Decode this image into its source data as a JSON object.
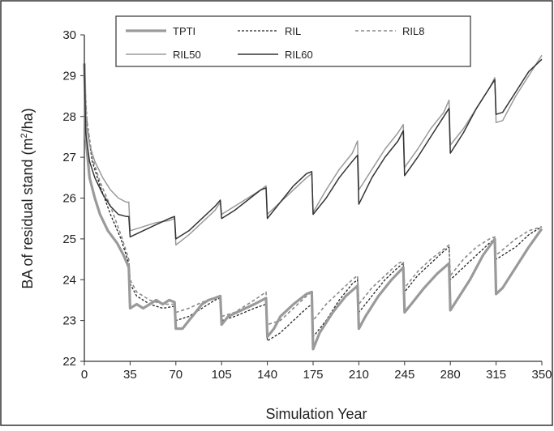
{
  "chart_data": {
    "type": "line",
    "xlabel": "Simulation Year",
    "ylabel_parts": [
      "BA of residual stand (m",
      "2",
      "/ha)"
    ],
    "xlim": [
      0,
      350
    ],
    "ylim": [
      22,
      30
    ],
    "x_ticks": [
      0,
      35,
      70,
      105,
      140,
      175,
      210,
      245,
      280,
      315,
      350
    ],
    "y_ticks": [
      22,
      23,
      24,
      25,
      26,
      27,
      28,
      29,
      30
    ],
    "legend_position": "top",
    "grid": false,
    "series": [
      {
        "name": "TPTI",
        "color": "#9a9a9a",
        "dash": "",
        "width": 3.2,
        "points": [
          [
            0,
            29.3
          ],
          [
            1,
            27.5
          ],
          [
            4,
            26.5
          ],
          [
            8,
            26.0
          ],
          [
            12,
            25.6
          ],
          [
            18,
            25.2
          ],
          [
            25,
            24.9
          ],
          [
            30,
            24.6
          ],
          [
            34,
            24.3
          ],
          [
            35,
            23.3
          ],
          [
            40,
            23.4
          ],
          [
            45,
            23.3
          ],
          [
            50,
            23.4
          ],
          [
            55,
            23.5
          ],
          [
            60,
            23.4
          ],
          [
            65,
            23.5
          ],
          [
            69,
            23.45
          ],
          [
            70,
            22.8
          ],
          [
            75,
            22.8
          ],
          [
            80,
            23.0
          ],
          [
            85,
            23.2
          ],
          [
            90,
            23.4
          ],
          [
            95,
            23.5
          ],
          [
            100,
            23.55
          ],
          [
            104,
            23.6
          ],
          [
            105,
            22.9
          ],
          [
            110,
            23.1
          ],
          [
            120,
            23.25
          ],
          [
            130,
            23.4
          ],
          [
            139,
            23.55
          ],
          [
            140,
            22.6
          ],
          [
            145,
            22.8
          ],
          [
            150,
            23.1
          ],
          [
            160,
            23.4
          ],
          [
            170,
            23.65
          ],
          [
            174,
            23.7
          ],
          [
            175,
            22.3
          ],
          [
            180,
            22.7
          ],
          [
            190,
            23.2
          ],
          [
            200,
            23.6
          ],
          [
            209,
            23.85
          ],
          [
            210,
            22.8
          ],
          [
            215,
            23.1
          ],
          [
            225,
            23.6
          ],
          [
            235,
            24.0
          ],
          [
            244,
            24.3
          ],
          [
            245,
            23.2
          ],
          [
            250,
            23.4
          ],
          [
            260,
            23.8
          ],
          [
            270,
            24.15
          ],
          [
            279,
            24.4
          ],
          [
            280,
            23.25
          ],
          [
            285,
            23.5
          ],
          [
            295,
            24.0
          ],
          [
            305,
            24.6
          ],
          [
            314,
            25.0
          ],
          [
            315,
            23.65
          ],
          [
            320,
            23.8
          ],
          [
            330,
            24.3
          ],
          [
            340,
            24.8
          ],
          [
            350,
            25.25
          ]
        ]
      },
      {
        "name": "RIL",
        "color": "#222222",
        "dash": "3,2",
        "width": 1.3,
        "points": [
          [
            0,
            29.0
          ],
          [
            2,
            27.8
          ],
          [
            6,
            26.9
          ],
          [
            12,
            26.3
          ],
          [
            20,
            25.6
          ],
          [
            28,
            25.0
          ],
          [
            34,
            24.4
          ],
          [
            35,
            23.9
          ],
          [
            40,
            23.6
          ],
          [
            50,
            23.4
          ],
          [
            60,
            23.3
          ],
          [
            69,
            23.35
          ],
          [
            70,
            23.0
          ],
          [
            80,
            23.1
          ],
          [
            90,
            23.3
          ],
          [
            100,
            23.5
          ],
          [
            104,
            23.55
          ],
          [
            105,
            23.0
          ],
          [
            115,
            23.1
          ],
          [
            130,
            23.3
          ],
          [
            139,
            23.4
          ],
          [
            140,
            22.5
          ],
          [
            150,
            22.7
          ],
          [
            160,
            23.0
          ],
          [
            170,
            23.3
          ],
          [
            174,
            23.4
          ],
          [
            175,
            22.6
          ],
          [
            185,
            23.0
          ],
          [
            195,
            23.5
          ],
          [
            205,
            23.9
          ],
          [
            209,
            24.0
          ],
          [
            210,
            23.2
          ],
          [
            220,
            23.6
          ],
          [
            230,
            24.0
          ],
          [
            240,
            24.3
          ],
          [
            244,
            24.4
          ],
          [
            245,
            23.7
          ],
          [
            255,
            24.1
          ],
          [
            265,
            24.4
          ],
          [
            275,
            24.7
          ],
          [
            279,
            24.8
          ],
          [
            280,
            24.0
          ],
          [
            290,
            24.3
          ],
          [
            300,
            24.6
          ],
          [
            310,
            24.9
          ],
          [
            314,
            25.0
          ],
          [
            315,
            24.5
          ],
          [
            330,
            24.8
          ],
          [
            340,
            25.1
          ],
          [
            350,
            25.3
          ]
        ]
      },
      {
        "name": "RIL8",
        "color": "#888888",
        "dash": "4,3",
        "width": 1.6,
        "points": [
          [
            0,
            29.1
          ],
          [
            2,
            27.9
          ],
          [
            6,
            27.0
          ],
          [
            12,
            26.4
          ],
          [
            20,
            25.8
          ],
          [
            28,
            25.1
          ],
          [
            34,
            24.5
          ],
          [
            35,
            24.0
          ],
          [
            40,
            23.7
          ],
          [
            50,
            23.5
          ],
          [
            60,
            23.4
          ],
          [
            69,
            23.4
          ],
          [
            70,
            23.2
          ],
          [
            80,
            23.3
          ],
          [
            90,
            23.45
          ],
          [
            100,
            23.55
          ],
          [
            104,
            23.6
          ],
          [
            105,
            23.1
          ],
          [
            115,
            23.2
          ],
          [
            130,
            23.5
          ],
          [
            139,
            23.7
          ],
          [
            140,
            22.9
          ],
          [
            150,
            23.0
          ],
          [
            160,
            23.3
          ],
          [
            170,
            23.6
          ],
          [
            174,
            23.7
          ],
          [
            175,
            23.0
          ],
          [
            185,
            23.4
          ],
          [
            195,
            23.7
          ],
          [
            205,
            24.0
          ],
          [
            209,
            24.1
          ],
          [
            210,
            23.4
          ],
          [
            220,
            23.8
          ],
          [
            230,
            24.1
          ],
          [
            240,
            24.4
          ],
          [
            244,
            24.45
          ],
          [
            245,
            23.8
          ],
          [
            255,
            24.2
          ],
          [
            265,
            24.5
          ],
          [
            275,
            24.75
          ],
          [
            279,
            24.85
          ],
          [
            280,
            24.1
          ],
          [
            290,
            24.5
          ],
          [
            300,
            24.8
          ],
          [
            310,
            25.0
          ],
          [
            314,
            25.05
          ],
          [
            315,
            24.6
          ],
          [
            330,
            25.0
          ],
          [
            340,
            25.2
          ],
          [
            350,
            25.3
          ]
        ]
      },
      {
        "name": "RIL50",
        "color": "#9a9a9a",
        "dash": "",
        "width": 1.5,
        "points": [
          [
            0,
            29.2
          ],
          [
            1,
            27.9
          ],
          [
            4,
            27.3
          ],
          [
            8,
            26.9
          ],
          [
            14,
            26.5
          ],
          [
            20,
            26.2
          ],
          [
            26,
            26.0
          ],
          [
            32,
            25.9
          ],
          [
            34,
            25.9
          ],
          [
            35,
            25.2
          ],
          [
            45,
            25.3
          ],
          [
            55,
            25.4
          ],
          [
            65,
            25.45
          ],
          [
            69,
            25.5
          ],
          [
            70,
            24.85
          ],
          [
            80,
            25.1
          ],
          [
            90,
            25.4
          ],
          [
            100,
            25.7
          ],
          [
            104,
            25.9
          ],
          [
            105,
            25.6
          ],
          [
            115,
            25.8
          ],
          [
            125,
            26.0
          ],
          [
            135,
            26.2
          ],
          [
            139,
            26.3
          ],
          [
            140,
            25.6
          ],
          [
            150,
            25.9
          ],
          [
            160,
            26.2
          ],
          [
            170,
            26.5
          ],
          [
            174,
            26.6
          ],
          [
            175,
            25.65
          ],
          [
            185,
            26.2
          ],
          [
            195,
            26.7
          ],
          [
            205,
            27.1
          ],
          [
            209,
            27.4
          ],
          [
            210,
            26.2
          ],
          [
            220,
            26.7
          ],
          [
            230,
            27.2
          ],
          [
            240,
            27.6
          ],
          [
            244,
            27.8
          ],
          [
            245,
            26.75
          ],
          [
            255,
            27.2
          ],
          [
            265,
            27.7
          ],
          [
            275,
            28.1
          ],
          [
            279,
            28.4
          ],
          [
            280,
            27.3
          ],
          [
            290,
            27.7
          ],
          [
            300,
            28.2
          ],
          [
            310,
            28.7
          ],
          [
            314,
            28.95
          ],
          [
            315,
            27.85
          ],
          [
            320,
            27.9
          ],
          [
            330,
            28.5
          ],
          [
            340,
            29.0
          ],
          [
            350,
            29.5
          ]
        ]
      },
      {
        "name": "RIL60",
        "color": "#333333",
        "dash": "",
        "width": 1.5,
        "points": [
          [
            0,
            29.3
          ],
          [
            1,
            27.6
          ],
          [
            4,
            26.9
          ],
          [
            8,
            26.5
          ],
          [
            14,
            26.1
          ],
          [
            20,
            25.8
          ],
          [
            26,
            25.6
          ],
          [
            32,
            25.55
          ],
          [
            34,
            25.55
          ],
          [
            35,
            25.05
          ],
          [
            45,
            25.2
          ],
          [
            55,
            25.35
          ],
          [
            65,
            25.5
          ],
          [
            69,
            25.55
          ],
          [
            70,
            25.0
          ],
          [
            80,
            25.2
          ],
          [
            90,
            25.5
          ],
          [
            100,
            25.8
          ],
          [
            104,
            25.95
          ],
          [
            105,
            25.5
          ],
          [
            115,
            25.7
          ],
          [
            125,
            25.95
          ],
          [
            135,
            26.2
          ],
          [
            139,
            26.25
          ],
          [
            140,
            25.5
          ],
          [
            150,
            25.9
          ],
          [
            160,
            26.3
          ],
          [
            170,
            26.6
          ],
          [
            174,
            26.65
          ],
          [
            175,
            25.6
          ],
          [
            185,
            26.0
          ],
          [
            195,
            26.5
          ],
          [
            205,
            26.9
          ],
          [
            209,
            27.05
          ],
          [
            210,
            25.85
          ],
          [
            220,
            26.5
          ],
          [
            230,
            27.0
          ],
          [
            240,
            27.4
          ],
          [
            244,
            27.65
          ],
          [
            245,
            26.55
          ],
          [
            255,
            27.0
          ],
          [
            265,
            27.5
          ],
          [
            275,
            28.0
          ],
          [
            279,
            28.2
          ],
          [
            280,
            27.1
          ],
          [
            290,
            27.6
          ],
          [
            300,
            28.2
          ],
          [
            310,
            28.7
          ],
          [
            314,
            28.9
          ],
          [
            315,
            28.05
          ],
          [
            320,
            28.1
          ],
          [
            330,
            28.6
          ],
          [
            340,
            29.1
          ],
          [
            350,
            29.4
          ]
        ]
      }
    ]
  }
}
